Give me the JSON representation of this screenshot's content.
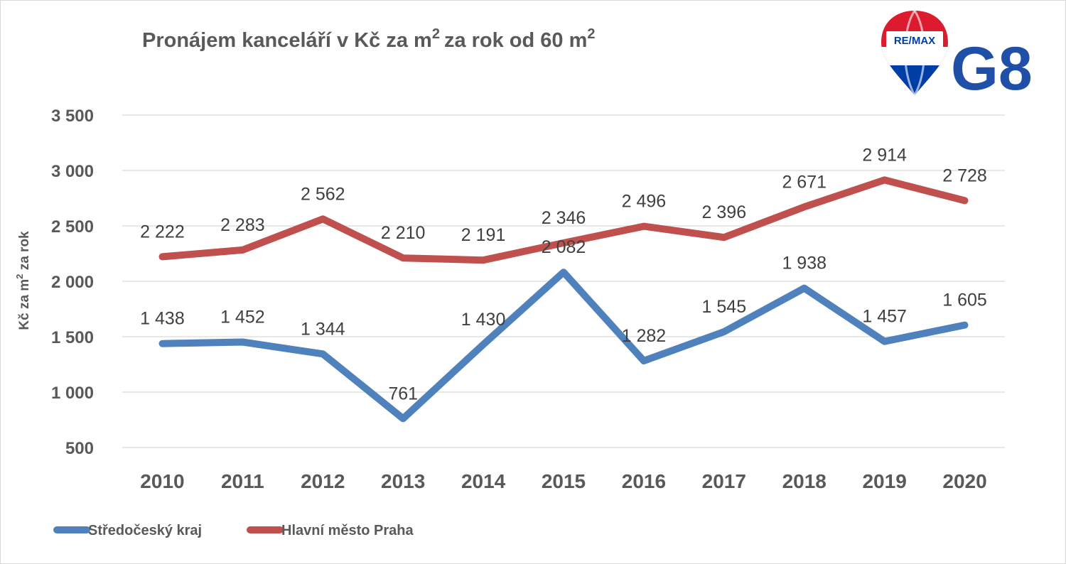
{
  "chart_data": {
    "type": "line",
    "title": "Pronájem kanceláří v Kč za m² za rok od 60 m²",
    "title_parts": {
      "part1": "Pronájem kanceláří v Kč za m",
      "sup1": "2",
      "part2": "za rok od 60 m",
      "sup2": "2"
    },
    "ylabel": "Kč za m² za rok",
    "ylabel_parts": {
      "part1": "Kč za m",
      "sup": "2",
      "part2": " za rok"
    },
    "xlabel": "",
    "categories": [
      "2010",
      "2011",
      "2012",
      "2013",
      "2014",
      "2015",
      "2016",
      "2017",
      "2018",
      "2019",
      "2020"
    ],
    "ylim": [
      500,
      3500
    ],
    "yticks": [
      500,
      1000,
      1500,
      2000,
      2500,
      3000,
      3500
    ],
    "ytick_labels": [
      "500",
      "1 000",
      "1 500",
      "2 000",
      "2 500",
      "3 000",
      "3 500"
    ],
    "grid": true,
    "legend_position": "bottom-left",
    "series": [
      {
        "name": "Středočeský kraj",
        "color": "#4f81bd",
        "values": [
          1438,
          1452,
          1344,
          761,
          1430,
          2082,
          1282,
          1545,
          1938,
          1457,
          1605
        ],
        "labels": [
          "1 438",
          "1 452",
          "1 344",
          "761",
          "1 430",
          "2 082",
          "1 282",
          "1 545",
          "1 938",
          "1 457",
          "1 605"
        ]
      },
      {
        "name": "Hlavní město Praha",
        "color": "#c0504d",
        "values": [
          2222,
          2283,
          2562,
          2210,
          2191,
          2346,
          2496,
          2396,
          2671,
          2914,
          2728
        ],
        "labels": [
          "2 222",
          "2 283",
          "2 562",
          "2 210",
          "2 191",
          "2 346",
          "2 496",
          "2 396",
          "2 671",
          "2 914",
          "2 728"
        ]
      }
    ]
  },
  "logos": {
    "remax": {
      "text": "RE/MAX",
      "colors": {
        "red": "#dc1c2e",
        "blue": "#003da5",
        "white": "#ffffff"
      }
    },
    "g8": {
      "text": "G8",
      "color": "#1f4fa6"
    }
  }
}
